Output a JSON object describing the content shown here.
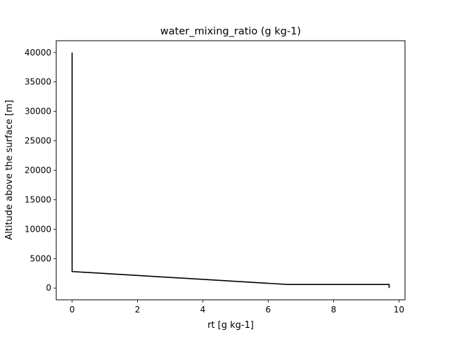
{
  "chart_data": {
    "type": "line",
    "title": "water_mixing_ratio (g kg-1)",
    "xlabel": "rt [g kg-1]",
    "ylabel": "Altitude above the surface [m]",
    "xlim": [
      -0.485,
      10.185
    ],
    "ylim": [
      -2000,
      42000
    ],
    "xticks": [
      0,
      2,
      4,
      6,
      8,
      10
    ],
    "yticks": [
      0,
      5000,
      10000,
      15000,
      20000,
      25000,
      30000,
      35000,
      40000
    ],
    "grid": false,
    "series": [
      {
        "color": "#000000",
        "x": [
          9.7,
          9.7,
          6.6,
          0.0,
          0.0
        ],
        "y": [
          0,
          600,
          600,
          2800,
          40000
        ]
      }
    ]
  }
}
